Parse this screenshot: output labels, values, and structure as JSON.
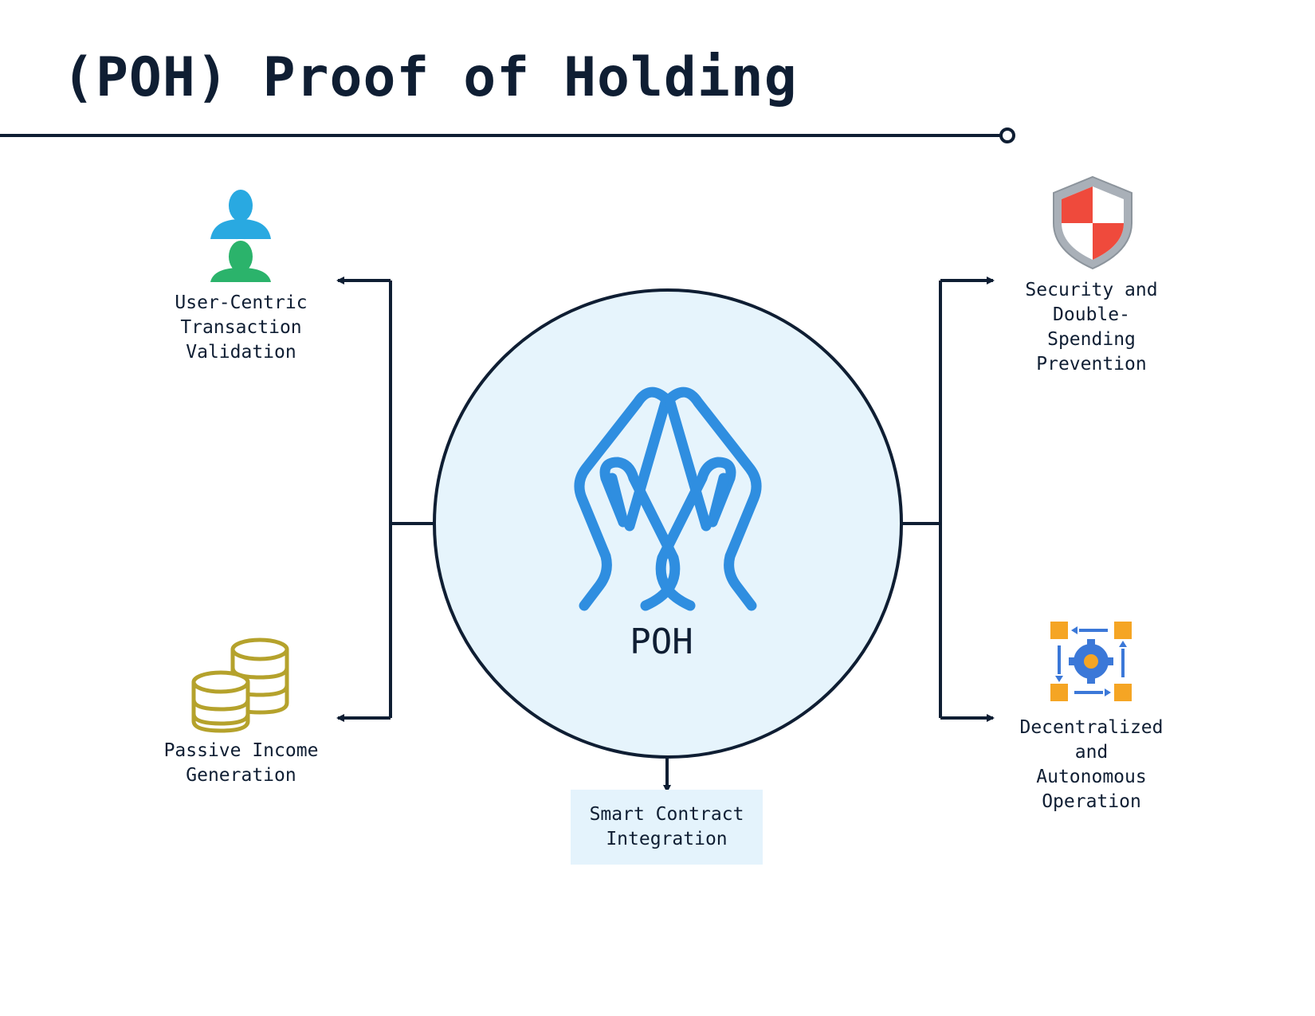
{
  "title": "(POH) Proof of Holding",
  "center": {
    "label": "POH",
    "icon": "hands-icon"
  },
  "items": {
    "user_validation": {
      "label": "User-Centric\nTransaction\nValidation",
      "icon": "users-icon"
    },
    "passive_income": {
      "label": "Passive Income\nGeneration",
      "icon": "coins-icon"
    },
    "security": {
      "label": "Security and\nDouble-\nSpending\nPrevention",
      "icon": "shield-icon"
    },
    "decentralized": {
      "label": "Decentralized\nand\nAutonomous\nOperation",
      "icon": "gear-network-icon"
    },
    "smart_contract": {
      "label": "Smart Contract\nIntegration"
    }
  },
  "colors": {
    "ink": "#0f1e33",
    "circle_fill": "#e6f4fc",
    "hands": "#2f8ee0",
    "users_top": "#29a9e1",
    "users_bottom": "#2bb36b",
    "coins": "#b5a22c",
    "shield_red": "#ef4a3c",
    "shield_silver": "#a9b0b8",
    "gear_blue": "#3b78d8",
    "box_orange": "#f5a524",
    "box_fill": "#e4f3fc"
  }
}
